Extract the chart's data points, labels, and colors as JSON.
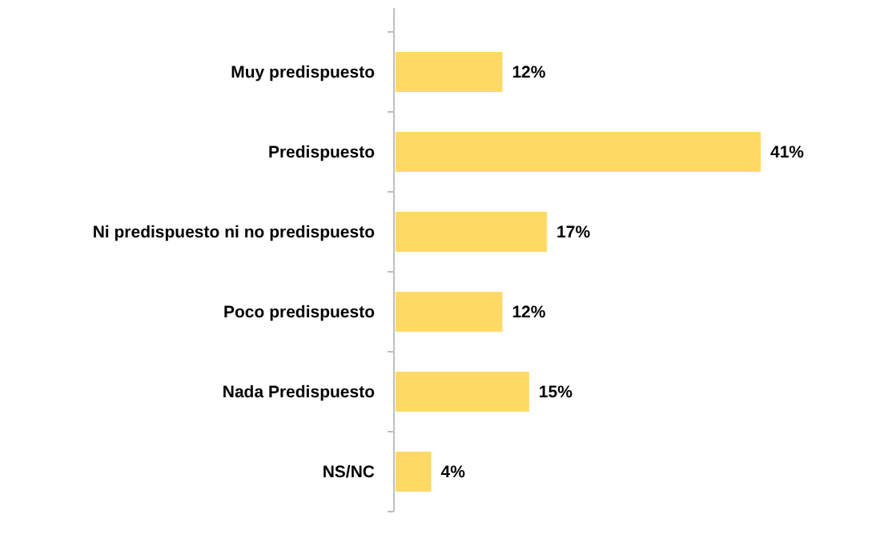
{
  "chart_data": {
    "type": "bar",
    "orientation": "horizontal",
    "categories": [
      "Muy predispuesto",
      "Predispuesto",
      "Ni predispuesto ni no predispuesto",
      "Poco predispuesto",
      "Nada Predispuesto",
      "NS/NC"
    ],
    "values": [
      12,
      41,
      17,
      12,
      15,
      4
    ],
    "value_labels": [
      "12%",
      "41%",
      "17%",
      "12%",
      "15%",
      "4%"
    ],
    "color": "#ffd966"
  }
}
